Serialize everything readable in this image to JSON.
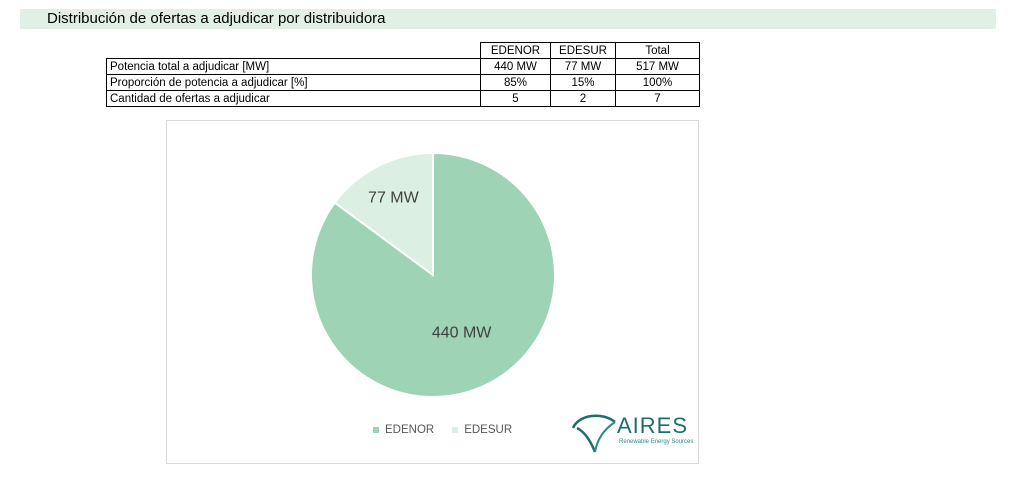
{
  "header": {
    "title": "Distribución de ofertas a adjudicar por distribuidora"
  },
  "table": {
    "columns": [
      "EDENOR",
      "EDESUR",
      "Total"
    ],
    "rows": [
      {
        "label": "Potencia total a adjudicar [MW]",
        "values": [
          "440 MW",
          "77 MW",
          "517 MW"
        ]
      },
      {
        "label": "Proporción de potencia a adjudicar [%]",
        "values": [
          "85%",
          "15%",
          "100%"
        ]
      },
      {
        "label": "Cantidad de ofertas a adjudicar",
        "values": [
          "5",
          "2",
          "7"
        ]
      }
    ]
  },
  "chart_data": {
    "type": "pie",
    "categories": [
      "EDENOR",
      "EDESUR"
    ],
    "values": [
      440,
      77
    ],
    "data_labels": [
      "440 MW",
      "77 MW"
    ],
    "colors": [
      "#9fd3b6",
      "#dcefe3"
    ],
    "legend": "bottom",
    "title": ""
  },
  "logo": {
    "name": "AIRES",
    "tagline": "Renewable Energy Sources",
    "color": "#1e6f6e"
  }
}
